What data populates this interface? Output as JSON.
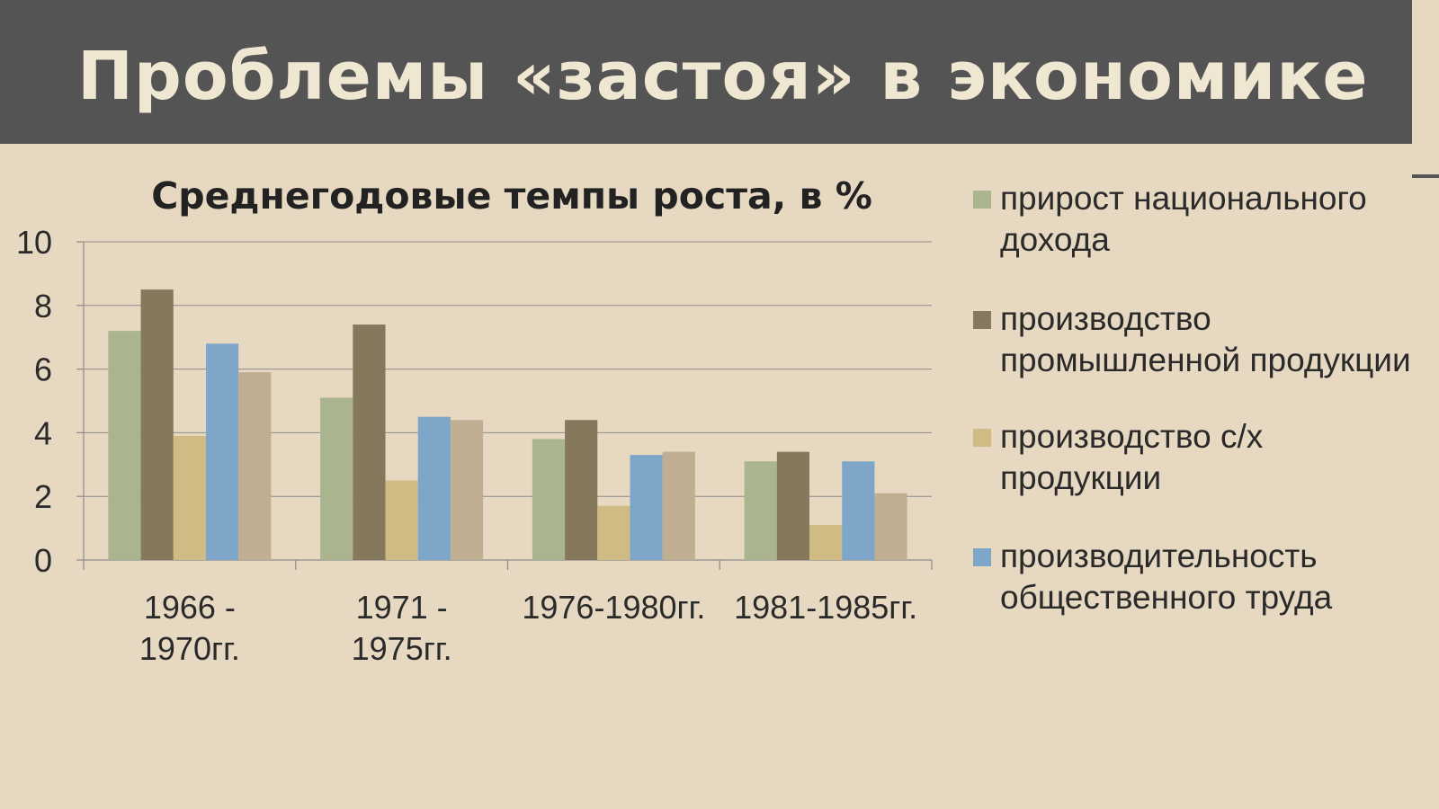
{
  "slide": {
    "title": "Проблемы «застоя» в экономике"
  },
  "colors": {
    "background": "#e7d8c1",
    "header": "#545454",
    "title_text": "#efe7d2",
    "gridline": "#8c8c8c"
  },
  "chart_data": {
    "type": "bar",
    "title": "Среднегодовые темпы роста, в %",
    "xlabel": "",
    "ylabel": "",
    "ylim": [
      0,
      10
    ],
    "yticks": [
      0,
      2,
      4,
      6,
      8,
      10
    ],
    "grid": true,
    "legend_position": "right",
    "categories": [
      [
        "1966 -",
        "1970гг."
      ],
      [
        "1971 -",
        "1975гг."
      ],
      [
        "1976-1980гг."
      ],
      [
        "1981-1985гг."
      ]
    ],
    "series": [
      {
        "name": "прирост национального дохода",
        "color": "#aab48e",
        "values": [
          7.2,
          5.1,
          3.8,
          3.1
        ]
      },
      {
        "name": "производство промышленной продукции",
        "color": "#85785d",
        "values": [
          8.5,
          7.4,
          4.4,
          3.4
        ]
      },
      {
        "name": "производство с/х продукции",
        "color": "#d1bb84",
        "values": [
          3.9,
          2.5,
          1.7,
          1.1
        ]
      },
      {
        "name": "производительность общественного труда",
        "color": "#7ea6c9",
        "values": [
          6.8,
          4.5,
          3.3,
          3.1
        ]
      },
      {
        "name": "",
        "color": "#c0ae92",
        "values": [
          5.9,
          4.4,
          3.4,
          2.1
        ]
      }
    ]
  }
}
